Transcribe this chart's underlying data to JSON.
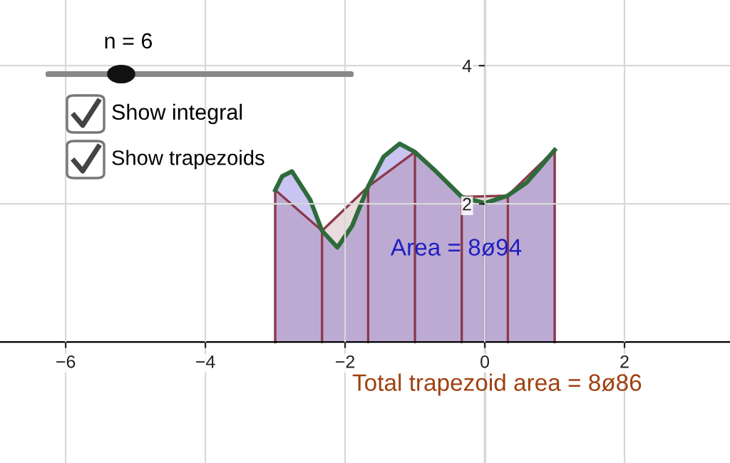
{
  "chart_data": {
    "type": "area",
    "xlim": [
      -6.94,
      3.51
    ],
    "ylim": [
      -1.75,
      4.95
    ],
    "xticks": [
      -6,
      -4,
      -2,
      0,
      2
    ],
    "yticks": [
      2,
      4
    ],
    "grid": true,
    "series": [
      {
        "color": "#b7b0ee",
        "x": [
          -3,
          -2.9,
          -2.76,
          -2.5,
          -2.33,
          -2.11,
          -1.9,
          -1.67,
          -1.45,
          -1.22,
          -1,
          -0.7,
          -0.33,
          0,
          0.33,
          0.6,
          0.8,
          1
        ],
        "values": [
          2.2,
          2.4,
          2.47,
          2.06,
          1.61,
          1.37,
          1.68,
          2.25,
          2.68,
          2.87,
          2.75,
          2.47,
          2.1,
          2.01,
          2.12,
          2.31,
          2.54,
          2.78
        ]
      },
      {
        "color": "#8b3a4a",
        "x": [
          -3,
          -2.33,
          -1.67,
          -1,
          -0.33,
          0.33,
          1
        ],
        "values": [
          2.2,
          1.61,
          2.25,
          2.75,
          2.1,
          2.12,
          2.78
        ]
      },
      {
        "type": "line",
        "color": "#2e6b3a",
        "x": [
          -3,
          -2.9,
          -2.76,
          -2.5,
          -2.33,
          -2.11,
          -1.9,
          -1.67,
          -1.45,
          -1.22,
          -1,
          -0.7,
          -0.33,
          0,
          0.33,
          0.6,
          0.8,
          1
        ],
        "values": [
          2.2,
          2.4,
          2.47,
          2.06,
          1.61,
          1.37,
          1.68,
          2.25,
          2.68,
          2.87,
          2.75,
          2.47,
          2.1,
          2.01,
          2.12,
          2.31,
          2.54,
          2.78
        ]
      }
    ],
    "annotations": [
      "n = 6",
      "Show integral",
      "Show trapezoids",
      "Area = 8ø94",
      "Total trapezoid area = 8ø86"
    ]
  }
}
